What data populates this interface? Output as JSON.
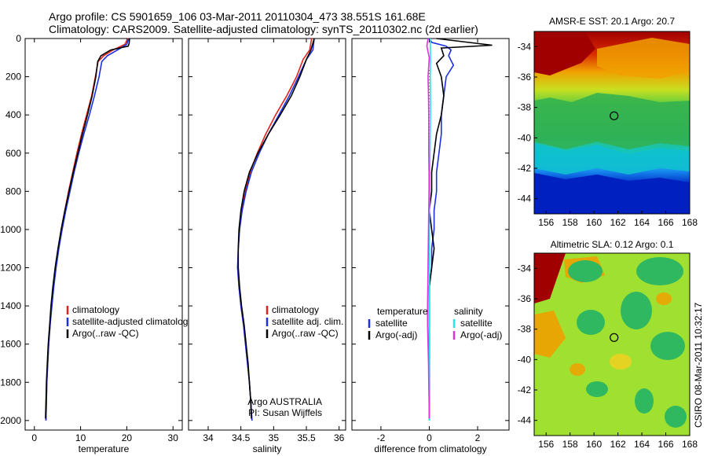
{
  "header": {
    "line1": "Argo profile: CS 5901659_106 03-Mar-2011 20110304_473 38.551S 161.68E",
    "line2": "Climatology: CARS2009. Satellite-adjusted climatology: synTS_20110302.nc (2d earlier)"
  },
  "side_stamp": "CSIRO 08-Mar-2011 10:32:17",
  "colors": {
    "red": "#e0231a",
    "blue": "#1c2fe0",
    "black": "#000000",
    "cyan": "#20e8e8",
    "magenta": "#e030e0"
  },
  "chart_data": [
    {
      "type": "line",
      "xlabel": "temperature",
      "xlim": [
        -2,
        32
      ],
      "ylim": [
        2050,
        0
      ],
      "xticks": [
        0,
        10,
        20,
        30
      ],
      "yticks": [
        0,
        200,
        400,
        600,
        800,
        1000,
        1200,
        1400,
        1600,
        1800,
        2000
      ],
      "legend": "lower-right",
      "series": [
        {
          "name": "climatology",
          "color": "#e0231a",
          "points": [
            [
              20.2,
              0
            ],
            [
              19.6,
              30
            ],
            [
              17.0,
              60
            ],
            [
              15.0,
              90
            ],
            [
              13.8,
              120
            ],
            [
              13.2,
              200
            ],
            [
              12.4,
              300
            ],
            [
              11.3,
              400
            ],
            [
              10.2,
              500
            ],
            [
              9.2,
              600
            ],
            [
              8.3,
              700
            ],
            [
              7.4,
              800
            ],
            [
              6.6,
              900
            ],
            [
              5.8,
              1000
            ],
            [
              5.2,
              1100
            ],
            [
              4.6,
              1200
            ],
            [
              4.1,
              1300
            ],
            [
              3.7,
              1400
            ],
            [
              3.4,
              1500
            ],
            [
              3.1,
              1600
            ],
            [
              2.9,
              1700
            ],
            [
              2.7,
              1800
            ],
            [
              2.6,
              1900
            ],
            [
              2.5,
              2000
            ]
          ]
        },
        {
          "name": "satellite-adjusted climatology",
          "color": "#1c2fe0",
          "points": [
            [
              20.4,
              0
            ],
            [
              20.0,
              30
            ],
            [
              18.0,
              60
            ],
            [
              15.8,
              90
            ],
            [
              14.6,
              120
            ],
            [
              14.0,
              200
            ],
            [
              13.0,
              300
            ],
            [
              11.9,
              400
            ],
            [
              10.7,
              500
            ],
            [
              9.6,
              600
            ],
            [
              8.6,
              700
            ],
            [
              7.7,
              800
            ],
            [
              6.8,
              900
            ],
            [
              6.0,
              1000
            ],
            [
              5.3,
              1100
            ],
            [
              4.7,
              1200
            ],
            [
              4.2,
              1300
            ],
            [
              3.8,
              1400
            ],
            [
              3.4,
              1500
            ],
            [
              3.1,
              1600
            ],
            [
              2.9,
              1700
            ],
            [
              2.7,
              1800
            ],
            [
              2.6,
              1900
            ],
            [
              2.5,
              2000
            ]
          ]
        },
        {
          "name": "Argo(..raw -QC)",
          "color": "#000000",
          "points": [
            [
              20.6,
              0
            ],
            [
              20.5,
              25
            ],
            [
              20.3,
              40
            ],
            [
              16.5,
              60
            ],
            [
              14.4,
              90
            ],
            [
              13.7,
              120
            ],
            [
              13.3,
              200
            ],
            [
              12.5,
              300
            ],
            [
              11.5,
              400
            ],
            [
              10.4,
              500
            ],
            [
              9.4,
              600
            ],
            [
              8.4,
              700
            ],
            [
              7.5,
              800
            ],
            [
              6.6,
              900
            ],
            [
              5.8,
              1000
            ],
            [
              5.1,
              1100
            ],
            [
              4.5,
              1200
            ],
            [
              4.0,
              1300
            ],
            [
              3.6,
              1400
            ],
            [
              3.3,
              1500
            ],
            [
              3.0,
              1600
            ],
            [
              2.8,
              1700
            ],
            [
              2.6,
              1800
            ],
            [
              2.5,
              1900
            ],
            [
              2.4,
              1990
            ]
          ]
        }
      ],
      "legend_entries": [
        "climatology",
        "satellite-adjusted climatology",
        "Argo(..raw -QC)"
      ]
    },
    {
      "type": "line",
      "xlabel": "salinity",
      "xlim": [
        33.7,
        36.1
      ],
      "ylim": [
        2050,
        0
      ],
      "xticks": [
        34,
        34.5,
        35,
        35.5,
        36
      ],
      "legend": "lower-right",
      "series": [
        {
          "name": "climatology",
          "color": "#e0231a",
          "points": [
            [
              35.58,
              0
            ],
            [
              35.55,
              60
            ],
            [
              35.45,
              110
            ],
            [
              35.35,
              200
            ],
            [
              35.2,
              300
            ],
            [
              35.03,
              400
            ],
            [
              34.88,
              500
            ],
            [
              34.75,
              600
            ],
            [
              34.64,
              700
            ],
            [
              34.57,
              800
            ],
            [
              34.51,
              900
            ],
            [
              34.48,
              1000
            ],
            [
              34.46,
              1100
            ],
            [
              34.45,
              1200
            ],
            [
              34.47,
              1300
            ],
            [
              34.5,
              1400
            ],
            [
              34.54,
              1500
            ],
            [
              34.57,
              1600
            ],
            [
              34.6,
              1700
            ],
            [
              34.63,
              1800
            ],
            [
              34.65,
              1900
            ],
            [
              34.67,
              2000
            ]
          ]
        },
        {
          "name": "satellite adj. clim.",
          "color": "#1c2fe0",
          "points": [
            [
              35.62,
              0
            ],
            [
              35.6,
              60
            ],
            [
              35.5,
              110
            ],
            [
              35.38,
              200
            ],
            [
              35.24,
              300
            ],
            [
              35.08,
              400
            ],
            [
              34.92,
              500
            ],
            [
              34.78,
              600
            ],
            [
              34.66,
              700
            ],
            [
              34.58,
              800
            ],
            [
              34.52,
              900
            ],
            [
              34.48,
              1000
            ],
            [
              34.46,
              1100
            ],
            [
              34.45,
              1200
            ],
            [
              34.47,
              1300
            ],
            [
              34.5,
              1400
            ],
            [
              34.54,
              1500
            ],
            [
              34.57,
              1600
            ],
            [
              34.6,
              1700
            ],
            [
              34.63,
              1800
            ],
            [
              34.65,
              1900
            ],
            [
              34.67,
              2000
            ]
          ]
        },
        {
          "name": "Argo(..raw -QC)",
          "color": "#000000",
          "points": [
            [
              35.62,
              0
            ],
            [
              35.57,
              60
            ],
            [
              35.5,
              110
            ],
            [
              35.4,
              200
            ],
            [
              35.27,
              300
            ],
            [
              35.1,
              400
            ],
            [
              34.92,
              500
            ],
            [
              34.76,
              600
            ],
            [
              34.63,
              700
            ],
            [
              34.55,
              800
            ],
            [
              34.5,
              900
            ],
            [
              34.47,
              1000
            ],
            [
              34.46,
              1100
            ],
            [
              34.46,
              1200
            ],
            [
              34.48,
              1300
            ],
            [
              34.51,
              1400
            ],
            [
              34.55,
              1500
            ],
            [
              34.58,
              1600
            ],
            [
              34.61,
              1700
            ],
            [
              34.63,
              1800
            ],
            [
              34.65,
              1900
            ],
            [
              34.66,
              1990
            ]
          ]
        }
      ],
      "legend_entries": [
        "climatology",
        "satellite adj. clim.",
        "Argo(..raw -QC)"
      ],
      "annotation": [
        "Argo AUSTRALIA",
        "PI: Susan Wijffels"
      ]
    },
    {
      "type": "line",
      "xlabel": "difference from climatology",
      "xlim": [
        -3.2,
        3.3
      ],
      "ylim": [
        2050,
        0
      ],
      "xticks": [
        -2,
        0,
        2
      ],
      "legend": "lower",
      "series": [
        {
          "name": "temperature satellite",
          "color": "#1c2fe0",
          "points": [
            [
              0.0,
              0
            ],
            [
              0.1,
              20
            ],
            [
              0.7,
              40
            ],
            [
              0.9,
              60
            ],
            [
              0.8,
              90
            ],
            [
              1.0,
              140
            ],
            [
              0.7,
              200
            ],
            [
              0.6,
              300
            ],
            [
              0.5,
              400
            ],
            [
              0.5,
              500
            ],
            [
              0.4,
              600
            ],
            [
              0.3,
              700
            ],
            [
              0.3,
              800
            ],
            [
              0.2,
              900
            ],
            [
              0.2,
              1000
            ],
            [
              0.1,
              1100
            ],
            [
              0.1,
              1200
            ],
            [
              0.0,
              1300
            ],
            [
              0.0,
              1400
            ],
            [
              0.0,
              1500
            ],
            [
              0.0,
              1600
            ],
            [
              0.0,
              1700
            ],
            [
              0.0,
              1800
            ],
            [
              0.0,
              1900
            ],
            [
              0.0,
              2000
            ]
          ]
        },
        {
          "name": "temperature Argo(-adj)",
          "color": "#000000",
          "points": [
            [
              0.3,
              0
            ],
            [
              2.6,
              35
            ],
            [
              0.5,
              50
            ],
            [
              0.6,
              90
            ],
            [
              0.3,
              130
            ],
            [
              0.5,
              200
            ],
            [
              0.6,
              300
            ],
            [
              0.5,
              400
            ],
            [
              0.3,
              500
            ],
            [
              0.2,
              600
            ],
            [
              0.1,
              700
            ],
            [
              0.1,
              800
            ],
            [
              0.0,
              900
            ],
            [
              0.1,
              1000
            ],
            [
              0.2,
              1100
            ],
            [
              0.1,
              1200
            ],
            [
              0.0,
              1300
            ],
            [
              0.0,
              1400
            ],
            [
              0.0,
              1500
            ],
            [
              0.0,
              1600
            ],
            [
              0.0,
              1700
            ],
            [
              0.0,
              1800
            ],
            [
              0.0,
              1900
            ],
            [
              0.0,
              1990
            ]
          ]
        },
        {
          "name": "salinity satellite",
          "color": "#20e8e8",
          "points": [
            [
              0.04,
              0
            ],
            [
              0.05,
              100
            ],
            [
              0.04,
              200
            ],
            [
              0.05,
              300
            ],
            [
              0.05,
              400
            ],
            [
              0.04,
              500
            ],
            [
              0.03,
              600
            ],
            [
              0.02,
              700
            ],
            [
              0.02,
              800
            ],
            [
              0.01,
              900
            ],
            [
              0.0,
              1000
            ],
            [
              0.0,
              1100
            ],
            [
              0.0,
              1200
            ],
            [
              0.0,
              1400
            ],
            [
              0.0,
              1600
            ],
            [
              0.0,
              1800
            ],
            [
              0.0,
              2000
            ]
          ]
        },
        {
          "name": "salinity Argo(-adj)",
          "color": "#e030e0",
          "points": [
            [
              -0.05,
              0
            ],
            [
              -0.1,
              40
            ],
            [
              0.0,
              100
            ],
            [
              -0.05,
              200
            ],
            [
              -0.03,
              300
            ],
            [
              -0.02,
              400
            ],
            [
              -0.02,
              500
            ],
            [
              -0.02,
              600
            ],
            [
              -0.01,
              700
            ],
            [
              -0.01,
              800
            ],
            [
              -0.02,
              900
            ],
            [
              -0.03,
              1000
            ],
            [
              -0.04,
              1100
            ],
            [
              -0.05,
              1200
            ],
            [
              -0.06,
              1300
            ],
            [
              -0.07,
              1400
            ],
            [
              -0.07,
              1500
            ],
            [
              -0.05,
              1600
            ],
            [
              -0.03,
              1700
            ],
            [
              -0.02,
              1800
            ],
            [
              -0.01,
              1900
            ],
            [
              0.0,
              1990
            ]
          ]
        }
      ],
      "legend_groups": [
        {
          "header": "temperature",
          "entries": [
            "satellite",
            "Argo(-adj)"
          ]
        },
        {
          "header": "salinity",
          "entries": [
            "satellite",
            "Argo(-adj)"
          ]
        }
      ]
    },
    {
      "type": "heatmap",
      "title": "AMSR-E SST: 20.1 Argo: 20.7",
      "xlim": [
        155,
        168
      ],
      "ylim": [
        -45,
        -33
      ],
      "xticks": [
        156,
        158,
        160,
        162,
        164,
        166,
        168
      ],
      "yticks": [
        -34,
        -36,
        -38,
        -40,
        -42,
        -44
      ],
      "marker": [
        161.68,
        -38.55
      ]
    },
    {
      "type": "heatmap",
      "title": "Altimetric SLA: 0.12 Argo: 0.1",
      "xlim": [
        155,
        168
      ],
      "ylim": [
        -45,
        -33
      ],
      "xticks": [
        156,
        158,
        160,
        162,
        164,
        166,
        168
      ],
      "yticks": [
        -34,
        -36,
        -38,
        -40,
        -42,
        -44
      ],
      "marker": [
        161.68,
        -38.55
      ]
    }
  ]
}
